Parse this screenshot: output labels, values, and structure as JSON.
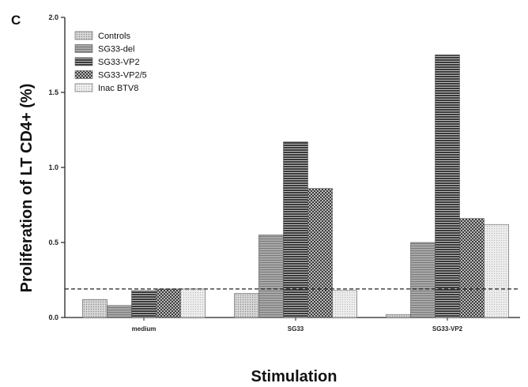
{
  "panel_label": "C",
  "chart_data": {
    "type": "bar",
    "title": "",
    "xlabel": "Stimulation",
    "ylabel": "Proliferation of LT CD4+ (%)",
    "ylim": [
      0,
      2.0
    ],
    "yticks": [
      "0.0",
      "0.5",
      "1.0",
      "1.5",
      "2.0"
    ],
    "categories": [
      "medium",
      "SG33",
      "SG33-VP2"
    ],
    "series": [
      {
        "name": "Controls",
        "values": [
          0.12,
          0.16,
          0.02
        ],
        "pattern": "dots-light"
      },
      {
        "name": "SG33-del",
        "values": [
          0.08,
          0.55,
          0.5
        ],
        "pattern": "hlines-gray"
      },
      {
        "name": "SG33-VP2",
        "values": [
          0.18,
          1.17,
          1.75
        ],
        "pattern": "hlines-dark"
      },
      {
        "name": "SG33-VP2/5",
        "values": [
          0.19,
          0.86,
          0.66
        ],
        "pattern": "crosshatch"
      },
      {
        "name": "Inac BTV8",
        "values": [
          0.19,
          0.18,
          0.62
        ],
        "pattern": "dots-very-light"
      }
    ],
    "reference_line": 0.19,
    "grid": false,
    "legend_position": "top-left"
  }
}
